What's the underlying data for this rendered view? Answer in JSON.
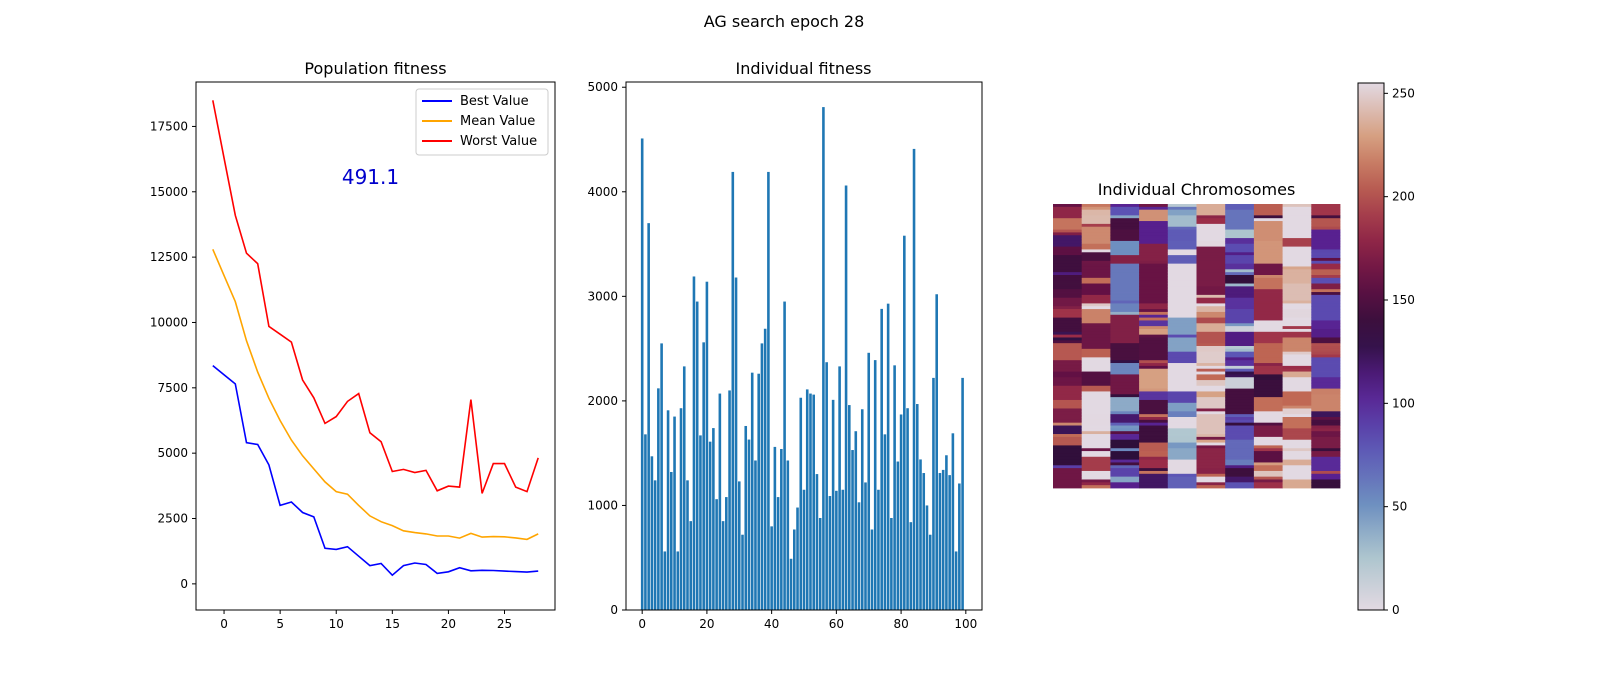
{
  "figure": {
    "suptitle": "AG search epoch 28"
  },
  "chart_data": [
    {
      "type": "line",
      "title": "Population fitness",
      "xlim": [
        -2.5,
        29.5
      ],
      "ylim": [
        -1000,
        19200
      ],
      "xticks": [
        0,
        5,
        10,
        15,
        20,
        25
      ],
      "yticks": [
        0,
        2500,
        5000,
        7500,
        10000,
        12500,
        15000,
        17500
      ],
      "x": [
        -1,
        0,
        1,
        2,
        3,
        4,
        5,
        6,
        7,
        8,
        9,
        10,
        11,
        12,
        13,
        14,
        15,
        16,
        17,
        18,
        19,
        20,
        21,
        22,
        23,
        24,
        25,
        26,
        27,
        28
      ],
      "series": [
        {
          "name": "Best Value",
          "color": "#0000ff",
          "values": [
            8350,
            8000,
            7650,
            5400,
            5330,
            4550,
            3000,
            3130,
            2730,
            2560,
            1360,
            1320,
            1420,
            1060,
            700,
            780,
            330,
            700,
            800,
            740,
            400,
            460,
            620,
            500,
            520,
            510,
            490,
            470,
            450,
            490
          ]
        },
        {
          "name": "Mean Value",
          "color": "#ffa500",
          "values": [
            12800,
            11800,
            10800,
            9300,
            8100,
            7100,
            6250,
            5500,
            4900,
            4400,
            3900,
            3530,
            3430,
            3000,
            2600,
            2380,
            2230,
            2030,
            1960,
            1910,
            1830,
            1830,
            1750,
            1930,
            1790,
            1810,
            1800,
            1760,
            1700,
            1910
          ]
        },
        {
          "name": "Worst Value",
          "color": "#ff0000",
          "values": [
            18500,
            16300,
            14100,
            12650,
            12250,
            9850,
            9550,
            9250,
            7800,
            7120,
            6140,
            6400,
            6980,
            7280,
            5780,
            5440,
            4300,
            4380,
            4260,
            4340,
            3560,
            3740,
            3700,
            7050,
            3460,
            4600,
            4600,
            3700,
            3530,
            4820
          ]
        }
      ],
      "legend": "top-right",
      "annotation": {
        "text": "491.1",
        "x": 10.5,
        "y": 15300
      }
    },
    {
      "type": "bar",
      "title": "Individual fitness",
      "xlim": [
        -5,
        105
      ],
      "ylim": [
        0,
        5050
      ],
      "xticks": [
        0,
        20,
        40,
        60,
        80,
        100
      ],
      "yticks": [
        0,
        1000,
        2000,
        3000,
        4000,
        5000
      ],
      "color": "#1f77b4",
      "x_start": 0,
      "values": [
        4510,
        1680,
        3700,
        1470,
        1240,
        2120,
        2550,
        560,
        1910,
        1320,
        1850,
        560,
        1930,
        2330,
        1240,
        850,
        3190,
        2950,
        1670,
        2560,
        3140,
        1610,
        1740,
        1060,
        2070,
        850,
        1080,
        2100,
        4190,
        3180,
        1230,
        720,
        1760,
        1630,
        2270,
        1430,
        2260,
        2550,
        2690,
        4190,
        800,
        1560,
        1080,
        1540,
        2950,
        1430,
        490,
        770,
        980,
        2030,
        1150,
        2110,
        2070,
        2060,
        1300,
        880,
        4810,
        2370,
        1090,
        2010,
        1140,
        2330,
        1150,
        4060,
        1960,
        1530,
        1710,
        1030,
        1920,
        1220,
        2460,
        770,
        2390,
        1150,
        2880,
        1680,
        2930,
        880,
        2340,
        1420,
        1870,
        3580,
        1930,
        840,
        4410,
        1970,
        1440,
        1310,
        1000,
        720,
        2220,
        3020,
        1310,
        1340,
        1480,
        1290,
        1690,
        560,
        1210,
        2220
      ]
    },
    {
      "type": "heatmap",
      "title": "Individual Chromosomes",
      "colormap": "twilight",
      "colorbar": {
        "min": 0,
        "max": 255,
        "ticks": [
          0,
          50,
          100,
          150,
          200,
          250
        ]
      },
      "rows": 100,
      "columns": 10,
      "column_base_values": [
        160,
        215,
        105,
        165,
        20,
        235,
        75,
        205,
        245,
        150
      ]
    }
  ]
}
